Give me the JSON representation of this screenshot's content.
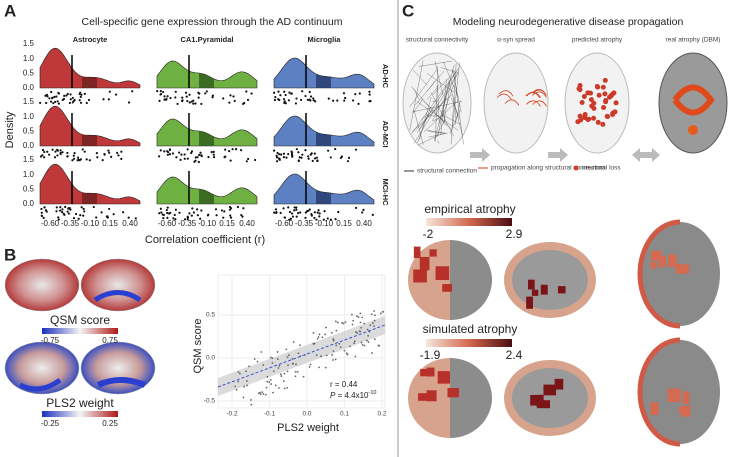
{
  "panel_a": {
    "label": "A",
    "title": "Cell-specific gene expression through the AD continuum",
    "columns": [
      "Astrocyte",
      "CA1.Pyramidal",
      "Microglia"
    ],
    "rows": [
      "AD-HC",
      "AD-MCI",
      "MCI-HC"
    ],
    "y_label": "Density",
    "y_ticks": [
      "1.5",
      "1.0",
      "0.5",
      "0.0"
    ],
    "x_ticks": [
      "-0.60",
      "-0.35",
      "-0.10",
      "0.15",
      "0.40"
    ],
    "x_label": "Correlation coefficient (r)"
  },
  "panel_b": {
    "label": "B",
    "qsm_bar": {
      "title": "QSM score",
      "min": "-0.75",
      "max": "0.75"
    },
    "pls_bar": {
      "title": "PLS2 weight",
      "min": "-0.25",
      "max": "0.25"
    },
    "scatter": {
      "y_label": "QSM score",
      "y_ticks": [
        "0.5",
        "0.0",
        "-0.5"
      ],
      "x_ticks": [
        "-0.2",
        "-0.1",
        "0.0",
        "0.1",
        "0.2"
      ],
      "x_label": "PLS2 weight",
      "r_text": "r = 0.44",
      "p_symbol": "P",
      "p_text": " = 4.4x10",
      "p_exp": "-10"
    }
  },
  "panel_c": {
    "label": "C",
    "title": "Modeling neurodegenerative disease propagation",
    "steps": [
      "structural connectivity",
      "α-syn spread",
      "predicted atrophy",
      "real atrophy (DBM)"
    ],
    "legend": [
      "structural connection",
      "propagation along structural connection",
      "neuronal loss"
    ],
    "empirical": {
      "title": "empirical atrophy",
      "min": "-2",
      "max": "2.9"
    },
    "simulated": {
      "title": "simulated atrophy",
      "min": "-1.9",
      "max": "2.4"
    }
  }
}
